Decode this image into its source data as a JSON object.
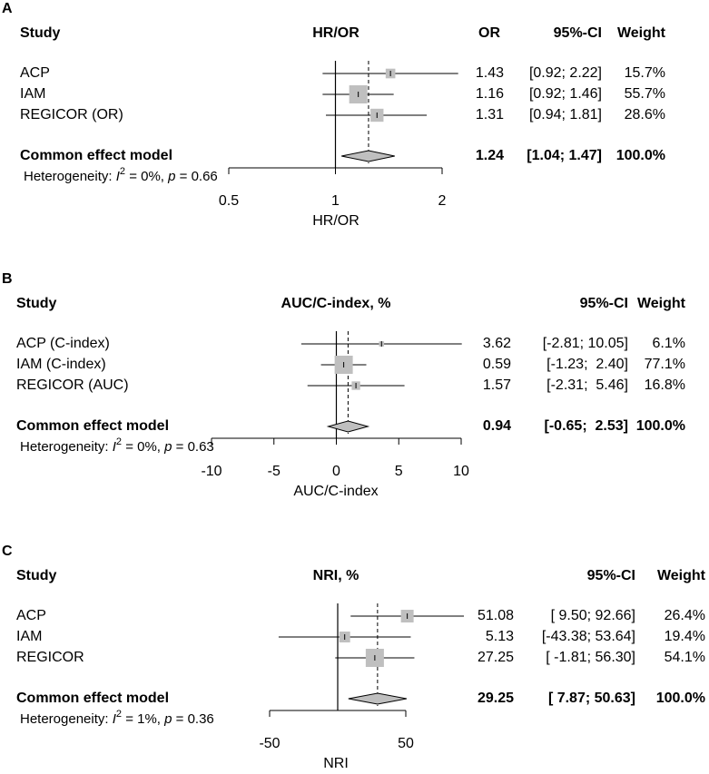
{
  "chart_data": [
    {
      "type": "forest",
      "panel_label": "A",
      "headers": {
        "study": "Study",
        "effect": "HR/OR",
        "estimate": "OR",
        "ci": "95%-CI",
        "weight": "Weight"
      },
      "categories": [
        "ACP",
        "IAM",
        "REGICOR (OR)"
      ],
      "values": [
        1.43,
        1.16,
        1.31
      ],
      "lower": [
        0.92,
        0.92,
        0.94
      ],
      "upper": [
        2.22,
        1.46,
        1.81
      ],
      "ci_labels": [
        "[0.92; 2.22]",
        "[0.92; 1.46]",
        "[0.94; 1.81]"
      ],
      "weights": [
        15.7,
        55.7,
        28.6
      ],
      "weight_labels": [
        "15.7%",
        "55.7%",
        "28.6%"
      ],
      "pooled": {
        "name": "Common effect model",
        "value": 1.24,
        "lower": 1.04,
        "upper": 1.47,
        "ci_label": "[1.04; 1.47]",
        "weight": 100,
        "weight_label": "100.0%"
      },
      "heterogeneity": [
        "Heterogeneity: ",
        "I",
        "2",
        " = 0%, ",
        "p",
        " = 0.66"
      ],
      "xlabel": "HR/OR",
      "xlim": [
        0.5,
        2
      ],
      "xticks": [
        0.5,
        1,
        2
      ],
      "log_x": true,
      "reference_line": 1,
      "box_color": "#bfbfbf",
      "diamond_color": "#bfbfbf"
    },
    {
      "type": "forest",
      "panel_label": "B",
      "headers": {
        "study": "Study",
        "effect": "AUC/C-index, %",
        "ci": "95%-CI",
        "weight": "Weight"
      },
      "categories": [
        "ACP (C-index)",
        "IAM (C-index)",
        "REGICOR (AUC)"
      ],
      "values": [
        3.62,
        0.59,
        1.57
      ],
      "lower": [
        -2.81,
        -1.23,
        -2.31
      ],
      "upper": [
        10.05,
        2.4,
        5.46
      ],
      "ci_labels": [
        "[-2.81; 10.05]",
        "[-1.23;  2.40]",
        "[-2.31;  5.46]"
      ],
      "weights": [
        6.1,
        77.1,
        16.8
      ],
      "weight_labels": [
        "6.1%",
        "77.1%",
        "16.8%"
      ],
      "pooled": {
        "name": "Common effect model",
        "value": 0.94,
        "lower": -0.65,
        "upper": 2.53,
        "ci_label": "[-0.65;  2.53]",
        "weight": 100,
        "weight_label": "100.0%"
      },
      "heterogeneity": [
        "Heterogeneity: ",
        "I",
        "2",
        " = 0%, ",
        "p",
        " = 0.63"
      ],
      "xlabel": "AUC/C-index",
      "xlim": [
        -10,
        10
      ],
      "xticks": [
        -10,
        -5,
        0,
        5,
        10
      ],
      "log_x": false,
      "reference_line": 0,
      "box_color": "#bfbfbf",
      "diamond_color": "#bfbfbf"
    },
    {
      "type": "forest",
      "panel_label": "C",
      "headers": {
        "study": "Study",
        "effect": "NRI, %",
        "ci": "95%-CI",
        "weight": "Weight"
      },
      "categories": [
        "ACP",
        "IAM",
        "REGICOR"
      ],
      "values": [
        51.08,
        5.13,
        27.25
      ],
      "lower": [
        9.5,
        -43.38,
        -1.81
      ],
      "upper": [
        92.66,
        53.64,
        56.3
      ],
      "ci_labels": [
        "[ 9.50; 92.66]",
        "[-43.38; 53.64]",
        "[ -1.81; 56.30]"
      ],
      "weights": [
        26.4,
        19.4,
        54.1
      ],
      "weight_labels": [
        "26.4%",
        "19.4%",
        "54.1%"
      ],
      "pooled": {
        "name": "Common effect model",
        "value": 29.25,
        "lower": 7.87,
        "upper": 50.63,
        "ci_label": "[ 7.87; 50.63]",
        "weight": 100,
        "weight_label": "100.0%"
      },
      "heterogeneity": [
        "Heterogeneity: ",
        "I",
        "2",
        " = 1%, ",
        "p",
        " = 0.36"
      ],
      "xlabel": "NRI",
      "xlim": [
        -50,
        50
      ],
      "xticks": [
        -50,
        50
      ],
      "log_x": false,
      "reference_line": 0,
      "box_color": "#bfbfbf",
      "diamond_color": "#bfbfbf"
    }
  ]
}
